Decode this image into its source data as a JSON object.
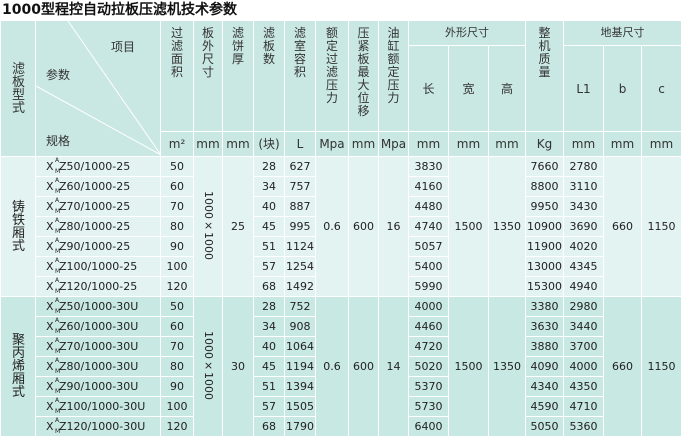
{
  "title": "1000型程控自动拉板压滤机技术参数",
  "header": {
    "type": "滤板型式",
    "item": "项目",
    "param": "参数",
    "spec": "规格",
    "cols": [
      {
        "name": "过滤面积",
        "unit": "m²"
      },
      {
        "name": "板外尺寸",
        "unit": "mm"
      },
      {
        "name": "滤饼厚",
        "unit": "mm"
      },
      {
        "name": "滤板数",
        "unit": "(块)"
      },
      {
        "name": "滤室容积",
        "unit": "L"
      },
      {
        "name": "额定过滤压力",
        "unit": "Mpa"
      },
      {
        "name": "压紧板最大位移",
        "unit": "mm"
      },
      {
        "name": "油缸额定压力",
        "unit": "Mpa"
      }
    ],
    "outer": {
      "name": "外形尺寸",
      "subs": [
        {
          "name": "长",
          "unit": "mm"
        },
        {
          "name": "宽",
          "unit": "mm"
        },
        {
          "name": "高",
          "unit": "mm"
        }
      ]
    },
    "weight": {
      "name": "整机质量",
      "unit": "Kg"
    },
    "base": {
      "name": "地基尺寸",
      "subs": [
        {
          "name": "L1",
          "unit": "mm"
        },
        {
          "name": "b",
          "unit": "mm"
        },
        {
          "name": "c",
          "unit": "mm"
        }
      ]
    }
  },
  "model_prefix": {
    "x": "X",
    "sup": "A",
    "sub": "M"
  },
  "sections": [
    {
      "type": "铸铁厢式",
      "plate_size": "1000×1000",
      "cake": "25",
      "pressure": "0.6",
      "travel": "600",
      "oil": "16",
      "width": "1500",
      "height": "1350",
      "b": "660",
      "c": "1150",
      "rows": [
        {
          "model": "Z50/1000-25",
          "area": "50",
          "plates": "28",
          "volume": "627",
          "length": "3830",
          "weight": "7660",
          "L1": "2780"
        },
        {
          "model": "Z60/1000-25",
          "area": "60",
          "plates": "34",
          "volume": "757",
          "length": "4160",
          "weight": "8800",
          "L1": "3110"
        },
        {
          "model": "Z70/1000-25",
          "area": "70",
          "plates": "40",
          "volume": "887",
          "length": "4480",
          "weight": "9950",
          "L1": "3430"
        },
        {
          "model": "Z80/1000-25",
          "area": "80",
          "plates": "45",
          "volume": "995",
          "length": "4740",
          "weight": "10900",
          "L1": "3690"
        },
        {
          "model": "Z90/1000-25",
          "area": "90",
          "plates": "51",
          "volume": "1124",
          "length": "5057",
          "weight": "11900",
          "L1": "4020"
        },
        {
          "model": "Z100/1000-25",
          "area": "100",
          "plates": "57",
          "volume": "1254",
          "length": "5400",
          "weight": "13000",
          "L1": "4345"
        },
        {
          "model": "Z120/1000-25",
          "area": "120",
          "plates": "68",
          "volume": "1492",
          "length": "5990",
          "weight": "15300",
          "L1": "4940"
        }
      ]
    },
    {
      "type": "聚丙烯厢式",
      "plate_size": "1000×1000",
      "cake": "30",
      "pressure": "0.6",
      "travel": "600",
      "oil": "14",
      "width": "1500",
      "height": "1350",
      "b": "660",
      "c": "1150",
      "rows": [
        {
          "model": "Z50/1000-30U",
          "area": "50",
          "plates": "28",
          "volume": "752",
          "length": "4000",
          "weight": "3380",
          "L1": "2980"
        },
        {
          "model": "Z60/1000-30U",
          "area": "60",
          "plates": "34",
          "volume": "908",
          "length": "4460",
          "weight": "3630",
          "L1": "3440"
        },
        {
          "model": "Z70/1000-30U",
          "area": "70",
          "plates": "40",
          "volume": "1064",
          "length": "4720",
          "weight": "3880",
          "L1": "3700"
        },
        {
          "model": "Z80/1000-30U",
          "area": "80",
          "plates": "45",
          "volume": "1194",
          "length": "5020",
          "weight": "4090",
          "L1": "4000"
        },
        {
          "model": "Z90/1000-30U",
          "area": "90",
          "plates": "51",
          "volume": "1394",
          "length": "5370",
          "weight": "4340",
          "L1": "4350"
        },
        {
          "model": "Z100/1000-30U",
          "area": "100",
          "plates": "57",
          "volume": "1505",
          "length": "5730",
          "weight": "4590",
          "L1": "4710"
        },
        {
          "model": "Z120/1000-30U",
          "area": "120",
          "plates": "68",
          "volume": "1790",
          "length": "6400",
          "weight": "5050",
          "L1": "5360"
        }
      ]
    }
  ]
}
